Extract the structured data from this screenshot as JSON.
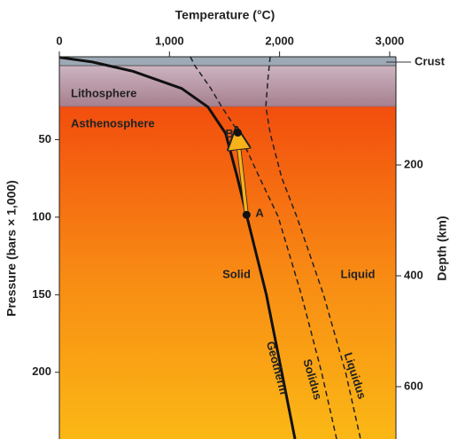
{
  "chart_data": {
    "type": "line",
    "x_label": "Temperature (°C)",
    "y_label": "Pressure (bars × 1,000)",
    "y2_label": "Depth (km)",
    "xlim": [
      0,
      3057
    ],
    "xticks": [
      0,
      {
        "value": 1000,
        "label": "1,000"
      },
      {
        "value": 2000,
        "label": "2,000"
      },
      {
        "value": 3000,
        "label": "3,000"
      }
    ],
    "ylim": [
      -3.4,
      243
    ],
    "yticks": [
      50,
      100,
      150,
      200
    ],
    "y2lim": [
      4.8,
      694.4
    ],
    "y2ticks": [
      200,
      400,
      600
    ],
    "layers": [
      {
        "name": "Crust",
        "bottom": 2.3,
        "color": "#9ea9b6"
      },
      {
        "name": "Lithosphere",
        "bottom": 28.6,
        "color": "#b895a5"
      },
      {
        "name": "Asthenosphere",
        "color": "#f25a12"
      }
    ],
    "series": [
      {
        "name": "Geotherm",
        "color": "#111111",
        "style": "solid",
        "x": [
          0,
          300,
          670,
          1110,
          1350,
          1510,
          1617,
          1700,
          1880,
          2020,
          2140
        ],
        "values": [
          -3,
          0,
          6,
          17,
          29,
          46,
          74.5,
          98.5,
          150,
          200,
          243
        ]
      },
      {
        "name": "Solidus",
        "color": "#222222",
        "style": "dashed",
        "x": [
          1190,
          1230,
          1376,
          1472,
          1633,
          1818,
          1987,
          2196,
          2381,
          2518
        ],
        "values": [
          -3.4,
          2.3,
          17,
          28.6,
          46,
          74.5,
          99.7,
          149.5,
          199.9,
          243
        ]
      },
      {
        "name": "Liquidus",
        "color": "#222222",
        "style": "dashed",
        "x": [
          1915,
          1895,
          1875,
          1915,
          2019,
          2156,
          2397,
          2599,
          2735
        ],
        "values": [
          -3.4,
          10,
          28.6,
          46,
          74.5,
          99.7,
          149.5,
          199.9,
          243
        ]
      }
    ],
    "points": [
      {
        "name": "A",
        "x": 1700,
        "y": 98.5
      },
      {
        "name": "B",
        "x": 1620,
        "y": 45.5
      }
    ],
    "arrow_color": "#f7b21a",
    "region_labels": [
      "Solid",
      "Liquid"
    ]
  }
}
